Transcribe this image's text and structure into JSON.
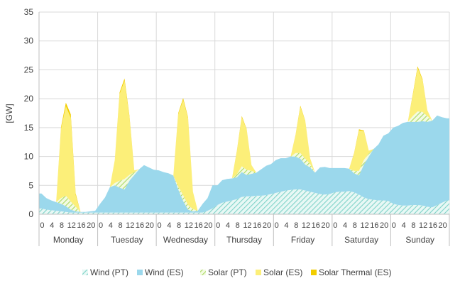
{
  "chart_data": {
    "type": "area",
    "stacked": true,
    "ylabel": "[GW]",
    "ylim": [
      0,
      35
    ],
    "yticks": [
      0,
      5,
      10,
      15,
      20,
      25,
      30,
      35
    ],
    "grid": true,
    "legend_position": "bottom",
    "hour_tick_labels": [
      "0",
      "4",
      "8",
      "12",
      "16",
      "20"
    ],
    "days": [
      "Monday",
      "Tuesday",
      "Wednesday",
      "Thursday",
      "Friday",
      "Saturday",
      "Sunday"
    ],
    "x_step_hours": 2,
    "series": [
      {
        "name": "Wind (PT)",
        "color": "#7fd3c8",
        "pattern": "hatch",
        "values": [
          1.0,
          0.8,
          0.7,
          0.6,
          0.5,
          0.4,
          0.3,
          0.3,
          0.3,
          0.3,
          0.3,
          0.3,
          0.3,
          0.3,
          0.3,
          0.3,
          0.3,
          0.3,
          0.3,
          0.3,
          0.3,
          0.3,
          0.3,
          0.3,
          0.3,
          0.3,
          0.3,
          0.3,
          0.3,
          0.3,
          0.3,
          0.3,
          0.3,
          0.3,
          0.6,
          1.0,
          1.6,
          2.0,
          2.2,
          2.4,
          2.6,
          3.0,
          3.1,
          3.1,
          3.2,
          3.2,
          3.3,
          3.5,
          3.7,
          3.9,
          4.1,
          4.2,
          4.3,
          4.3,
          4.1,
          3.9,
          3.7,
          3.5,
          3.4,
          3.5,
          3.8,
          3.9,
          3.9,
          4.0,
          3.8,
          3.4,
          2.9,
          2.6,
          2.5,
          2.4,
          2.4,
          2.3,
          1.8,
          1.6,
          1.5,
          1.5,
          1.6,
          1.6,
          1.5,
          1.3,
          1.2,
          1.6,
          2.0,
          2.4
        ]
      },
      {
        "name": "Wind (ES)",
        "color": "#9bd8ec",
        "pattern": "solid",
        "values": [
          2.6,
          2.0,
          1.7,
          1.5,
          1.3,
          1.0,
          0.5,
          0.2,
          0.1,
          0.1,
          0.2,
          0.3,
          1.5,
          2.6,
          4.4,
          4.7,
          4.3,
          4.0,
          5.5,
          6.5,
          7.5,
          8.2,
          7.8,
          7.4,
          7.3,
          7.0,
          6.8,
          6.4,
          4.0,
          2.0,
          0.5,
          0.2,
          0.3,
          1.5,
          2.2,
          4.0,
          3.4,
          3.9,
          3.9,
          3.8,
          3.8,
          4.3,
          3.7,
          3.9,
          4.0,
          4.6,
          5.1,
          5.2,
          5.7,
          5.8,
          5.6,
          5.8,
          5.7,
          5.3,
          4.5,
          4.2,
          3.5,
          4.6,
          4.8,
          4.5,
          4.2,
          4.1,
          4.1,
          3.9,
          3.3,
          3.3,
          5.7,
          7.4,
          8.8,
          9.7,
          11.2,
          11.7,
          13.2,
          13.7,
          14.3,
          14.5,
          14.4,
          14.4,
          14.6,
          14.7,
          15.0,
          15.5,
          14.8,
          14.2
        ]
      },
      {
        "name": "Solar (PT)",
        "color": "#b5e07a",
        "pattern": "hatch",
        "values": [
          0,
          0,
          0,
          0,
          1.0,
          1.8,
          1.4,
          0.8,
          0,
          0,
          0,
          0,
          0,
          0,
          0,
          0.4,
          1.2,
          1.8,
          1.0,
          0.5,
          0,
          0,
          0,
          0,
          0,
          0,
          0,
          0,
          0.5,
          1.0,
          0.8,
          0.4,
          0,
          0,
          0,
          0,
          0,
          0,
          0,
          0,
          0.5,
          1.0,
          0.9,
          0.5,
          0,
          0,
          0,
          0,
          0,
          0,
          0,
          0,
          0.6,
          1.0,
          1.0,
          0.6,
          0,
          0,
          0,
          0,
          0,
          0,
          0,
          0,
          0.4,
          0.8,
          0.8,
          0.5,
          0,
          0,
          0,
          0,
          0,
          0,
          0,
          0,
          1.0,
          1.8,
          1.6,
          1.0,
          0,
          0,
          0,
          0
        ]
      },
      {
        "name": "Solar (ES)",
        "color": "#fcef79",
        "pattern": "solid",
        "values": [
          0,
          0,
          0,
          0,
          12.0,
          15.5,
          14.5,
          2.0,
          0,
          0,
          0,
          0,
          0,
          0,
          0,
          4.0,
          15.0,
          17.0,
          10.0,
          0.3,
          0,
          0,
          0,
          0,
          0,
          0,
          0,
          0,
          12.5,
          16.5,
          15.0,
          3.0,
          0,
          0,
          0,
          0,
          0,
          0,
          0,
          0,
          4.0,
          8.5,
          7.0,
          1.0,
          0,
          0,
          0,
          0,
          0,
          0,
          0,
          0,
          3.0,
          8.0,
          6.5,
          1.0,
          0,
          0,
          0,
          0,
          0,
          0,
          0,
          0,
          3.0,
          7.0,
          5.0,
          0.5,
          0,
          0,
          0,
          0,
          0,
          0,
          0,
          0,
          3.5,
          7.5,
          5.5,
          1.0,
          0,
          0,
          0,
          0
        ]
      },
      {
        "name": "Solar Thermal (ES)",
        "color": "#f2cd00",
        "pattern": "solid",
        "values": [
          0,
          0,
          0,
          0,
          0.3,
          0.6,
          0.6,
          0.3,
          0,
          0,
          0,
          0,
          0,
          0,
          0,
          0,
          0.3,
          0.4,
          0.3,
          0,
          0,
          0,
          0,
          0,
          0,
          0,
          0,
          0,
          0.2,
          0.3,
          0.2,
          0,
          0,
          0,
          0,
          0,
          0,
          0,
          0,
          0,
          0.1,
          0.2,
          0.1,
          0,
          0,
          0,
          0,
          0,
          0,
          0,
          0,
          0,
          0.1,
          0.2,
          0.1,
          0,
          0,
          0,
          0,
          0,
          0,
          0,
          0,
          0,
          0.1,
          0.2,
          0.1,
          0,
          0,
          0,
          0,
          0,
          0,
          0,
          0,
          0,
          0.2,
          0.3,
          0.2,
          0,
          0,
          0,
          0,
          0
        ]
      }
    ]
  }
}
